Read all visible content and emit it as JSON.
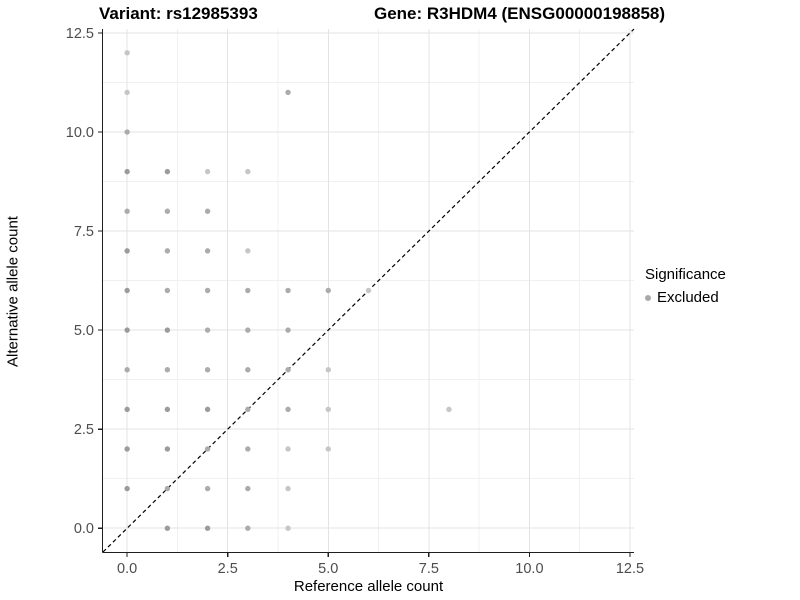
{
  "chart_data": {
    "type": "scatter",
    "title_left": "Variant: rs12985393",
    "title_right": "Gene: R3HDM4 (ENSG00000198858)",
    "xlabel": "Reference allele count",
    "ylabel": "Alternative allele count",
    "xlim": [
      -0.6,
      12.6
    ],
    "ylim": [
      -0.6,
      12.6
    ],
    "x_ticks": [
      0,
      2.5,
      5,
      7.5,
      10,
      12.5
    ],
    "x_tick_labels": [
      "0.0",
      "2.5",
      "5.0",
      "7.5",
      "10.0",
      "12.5"
    ],
    "y_ticks": [
      0,
      2.5,
      5,
      7.5,
      10,
      12.5
    ],
    "y_tick_labels": [
      "0.0",
      "2.5",
      "5.0",
      "7.5",
      "10.0",
      "12.5"
    ],
    "minor_ticks": [
      1.25,
      3.75,
      6.25,
      8.75,
      11.25
    ],
    "grid": true,
    "identity_line": {
      "slope": 1,
      "intercept": 0,
      "style": "dashed",
      "color": "#000000"
    },
    "shade_colors": {
      "l": "#c6c6c6",
      "m": "#ababab",
      "d": "#9b9b9b"
    },
    "series": [
      {
        "name": "Excluded",
        "points": [
          {
            "x": 0,
            "y": 1,
            "shade": "d"
          },
          {
            "x": 0,
            "y": 2,
            "shade": "d"
          },
          {
            "x": 0,
            "y": 3,
            "shade": "d"
          },
          {
            "x": 0,
            "y": 4,
            "shade": "m"
          },
          {
            "x": 0,
            "y": 5,
            "shade": "d"
          },
          {
            "x": 0,
            "y": 6,
            "shade": "d"
          },
          {
            "x": 0,
            "y": 7,
            "shade": "d"
          },
          {
            "x": 0,
            "y": 8,
            "shade": "m"
          },
          {
            "x": 0,
            "y": 9,
            "shade": "d"
          },
          {
            "x": 0,
            "y": 10,
            "shade": "m"
          },
          {
            "x": 0,
            "y": 11,
            "shade": "l"
          },
          {
            "x": 0,
            "y": 12,
            "shade": "l"
          },
          {
            "x": 1,
            "y": 0,
            "shade": "d"
          },
          {
            "x": 1,
            "y": 1,
            "shade": "m"
          },
          {
            "x": 1,
            "y": 2,
            "shade": "d"
          },
          {
            "x": 1,
            "y": 3,
            "shade": "d"
          },
          {
            "x": 1,
            "y": 4,
            "shade": "m"
          },
          {
            "x": 1,
            "y": 5,
            "shade": "d"
          },
          {
            "x": 1,
            "y": 6,
            "shade": "m"
          },
          {
            "x": 1,
            "y": 7,
            "shade": "m"
          },
          {
            "x": 1,
            "y": 8,
            "shade": "m"
          },
          {
            "x": 1,
            "y": 9,
            "shade": "d"
          },
          {
            "x": 2,
            "y": 0,
            "shade": "d"
          },
          {
            "x": 2,
            "y": 1,
            "shade": "m"
          },
          {
            "x": 2,
            "y": 2,
            "shade": "m"
          },
          {
            "x": 2,
            "y": 3,
            "shade": "d"
          },
          {
            "x": 2,
            "y": 4,
            "shade": "m"
          },
          {
            "x": 2,
            "y": 5,
            "shade": "m"
          },
          {
            "x": 2,
            "y": 6,
            "shade": "m"
          },
          {
            "x": 2,
            "y": 7,
            "shade": "m"
          },
          {
            "x": 2,
            "y": 8,
            "shade": "m"
          },
          {
            "x": 2,
            "y": 9,
            "shade": "l"
          },
          {
            "x": 3,
            "y": 0,
            "shade": "m"
          },
          {
            "x": 3,
            "y": 1,
            "shade": "m"
          },
          {
            "x": 3,
            "y": 2,
            "shade": "m"
          },
          {
            "x": 3,
            "y": 3,
            "shade": "m"
          },
          {
            "x": 3,
            "y": 4,
            "shade": "m"
          },
          {
            "x": 3,
            "y": 5,
            "shade": "m"
          },
          {
            "x": 3,
            "y": 6,
            "shade": "m"
          },
          {
            "x": 3,
            "y": 7,
            "shade": "l"
          },
          {
            "x": 3,
            "y": 9,
            "shade": "l"
          },
          {
            "x": 4,
            "y": 0,
            "shade": "l"
          },
          {
            "x": 4,
            "y": 1,
            "shade": "l"
          },
          {
            "x": 4,
            "y": 2,
            "shade": "l"
          },
          {
            "x": 4,
            "y": 3,
            "shade": "m"
          },
          {
            "x": 4,
            "y": 4,
            "shade": "m"
          },
          {
            "x": 4,
            "y": 5,
            "shade": "m"
          },
          {
            "x": 4,
            "y": 6,
            "shade": "m"
          },
          {
            "x": 4,
            "y": 11,
            "shade": "m"
          },
          {
            "x": 5,
            "y": 2,
            "shade": "l"
          },
          {
            "x": 5,
            "y": 3,
            "shade": "l"
          },
          {
            "x": 5,
            "y": 4,
            "shade": "l"
          },
          {
            "x": 5,
            "y": 6,
            "shade": "m"
          },
          {
            "x": 6,
            "y": 6,
            "shade": "l"
          },
          {
            "x": 8,
            "y": 3,
            "shade": "l"
          }
        ]
      }
    ],
    "legend": {
      "title": "Significance",
      "position": "right",
      "items": [
        {
          "label": "Excluded",
          "color": "#a9a9a9"
        }
      ]
    },
    "style_colors": {
      "grid_major": "#e3e3e3",
      "grid_minor": "#f0f0f0",
      "axis_line": "#1f1f1f",
      "tick_label": "#4d4d4d"
    }
  }
}
